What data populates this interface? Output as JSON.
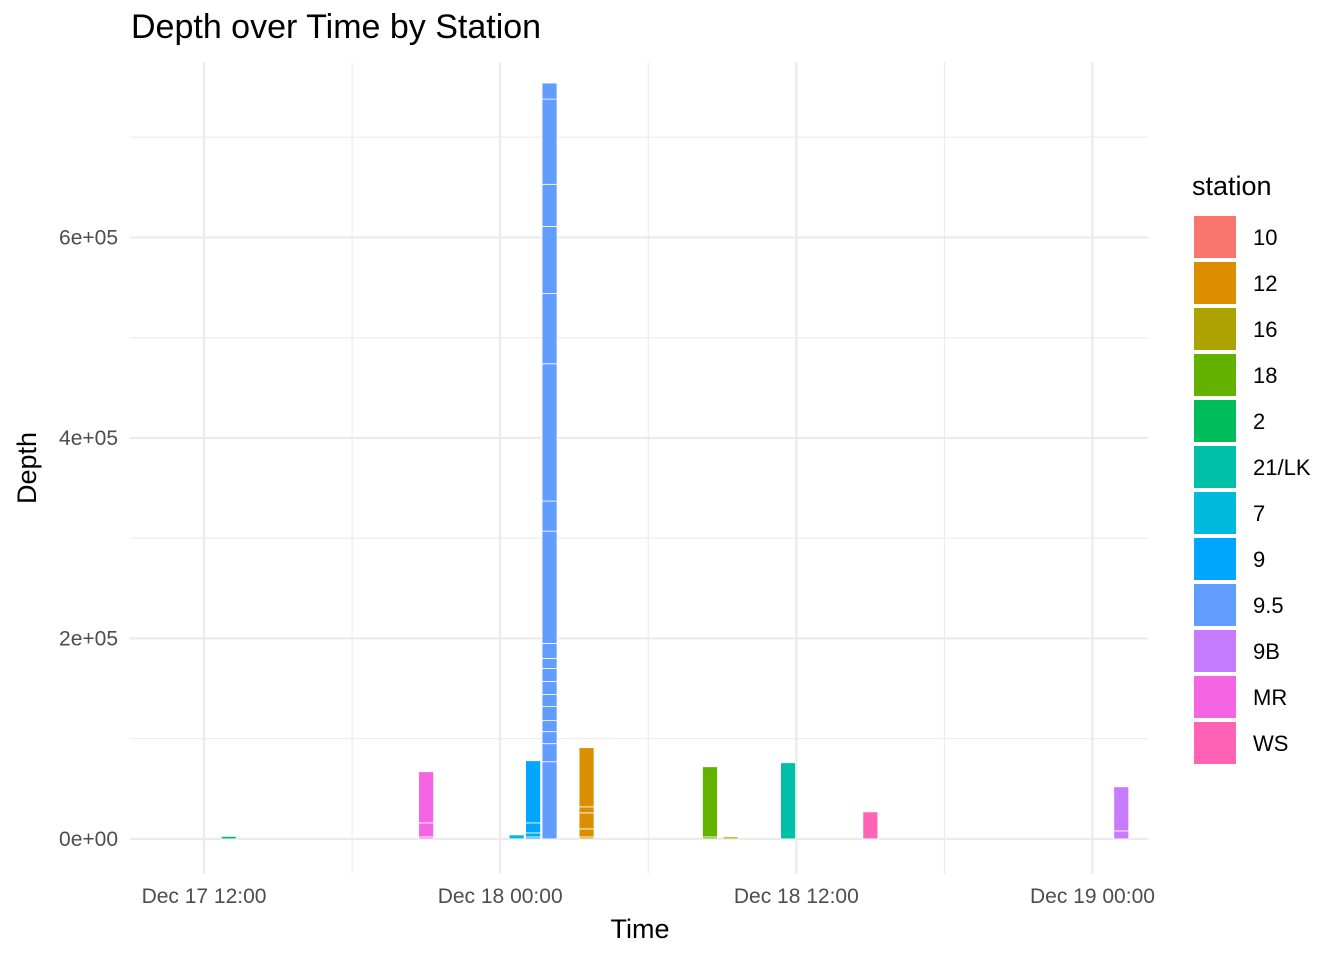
{
  "chart_data": {
    "type": "bar",
    "title": "Depth over Time by Station",
    "xlabel": "Time",
    "ylabel": "Depth",
    "x_axis": {
      "scale": "datetime",
      "range": [
        "2023-12-17 09:00",
        "2023-12-19 02:15"
      ],
      "ticks": [
        {
          "at": "2023-12-17 12:00",
          "label": "Dec 17 12:00"
        },
        {
          "at": "2023-12-18 00:00",
          "label": "Dec 18 00:00"
        },
        {
          "at": "2023-12-18 12:00",
          "label": "Dec 18 12:00"
        },
        {
          "at": "2023-12-19 00:00",
          "label": "Dec 19 00:00"
        }
      ]
    },
    "y_axis": {
      "range": [
        -35000,
        775000
      ],
      "ticks": [
        {
          "value": 0,
          "label": "0e+00"
        },
        {
          "value": 200000,
          "label": "2e+05"
        },
        {
          "value": 400000,
          "label": "4e+05"
        },
        {
          "value": 600000,
          "label": "6e+05"
        }
      ]
    },
    "grid": true,
    "legend": {
      "title": "station",
      "position": "right"
    },
    "stations": [
      {
        "name": "10",
        "color": "#F8766D"
      },
      {
        "name": "12",
        "color": "#DB8E00"
      },
      {
        "name": "16",
        "color": "#AEA200"
      },
      {
        "name": "18",
        "color": "#64B200"
      },
      {
        "name": "2",
        "color": "#00BD5C"
      },
      {
        "name": "21/LK",
        "color": "#00C1A7"
      },
      {
        "name": "7",
        "color": "#00BADE"
      },
      {
        "name": "9",
        "color": "#00A6FF"
      },
      {
        "name": "9.5",
        "color": "#619CFF"
      },
      {
        "name": "9B",
        "color": "#C77CFF"
      },
      {
        "name": "MR",
        "color": "#F564E3"
      },
      {
        "name": "WS",
        "color": "#FF63B6"
      }
    ],
    "bars": [
      {
        "station": "2",
        "time": "2023-12-17 13:00",
        "segments": [
          2500
        ]
      },
      {
        "station": "MR",
        "time": "2023-12-17 21:00",
        "segments": [
          2000,
          14000,
          51000
        ]
      },
      {
        "station": "7",
        "time": "2023-12-18 00:40",
        "segments": [
          4000
        ]
      },
      {
        "station": "9",
        "time": "2023-12-18 01:20",
        "segments": [
          2000,
          4000,
          10000,
          62000
        ]
      },
      {
        "station": "9.5",
        "time": "2023-12-18 02:00",
        "segments": [
          77000,
          18000,
          12000,
          11000,
          14000,
          12000,
          13000,
          13000,
          10000,
          15000,
          112000,
          30000,
          137000,
          70000,
          67000,
          42000,
          85000,
          16000
        ]
      },
      {
        "station": "12",
        "time": "2023-12-18 03:30",
        "segments": [
          2000,
          8000,
          16000,
          6000,
          59000
        ]
      },
      {
        "station": "18",
        "time": "2023-12-18 08:30",
        "segments": [
          2000,
          70000
        ]
      },
      {
        "station": "16",
        "time": "2023-12-18 09:20",
        "segments": [
          2000
        ]
      },
      {
        "station": "21/LK",
        "time": "2023-12-18 11:40",
        "segments": [
          76000
        ]
      },
      {
        "station": "WS",
        "time": "2023-12-18 15:00",
        "segments": [
          27000
        ]
      },
      {
        "station": "9B",
        "time": "2023-12-19 01:10",
        "segments": [
          8000,
          44000
        ]
      }
    ]
  }
}
